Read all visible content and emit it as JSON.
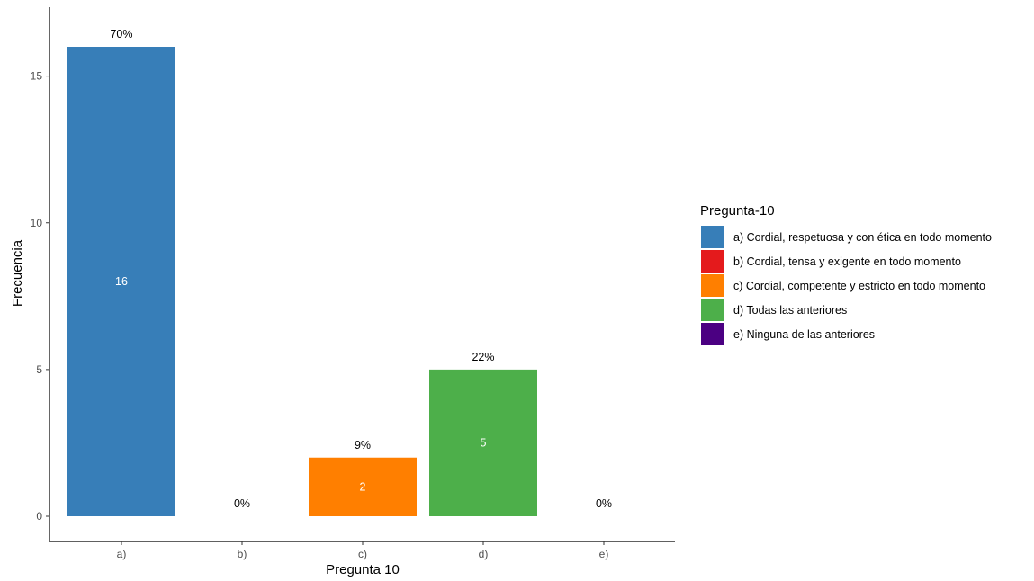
{
  "chart_data": {
    "type": "bar",
    "categories": [
      "a)",
      "b)",
      "c)",
      "d)",
      "e)"
    ],
    "values": [
      16,
      0,
      2,
      5,
      0
    ],
    "percent_labels": [
      "70%",
      "0%",
      "9%",
      "22%",
      "0%"
    ],
    "count_labels": [
      "16",
      "",
      "2",
      "5",
      ""
    ],
    "colors": [
      "#377EB8",
      "#E41A1C",
      "#FF7F00",
      "#4DAF4A",
      "#4B0082"
    ],
    "xlabel": "Pregunta 10",
    "ylabel": "Frecuencia",
    "ylim": [
      0,
      17.5
    ],
    "yticks": [
      0,
      5,
      10,
      15
    ],
    "grid": false,
    "legend": {
      "title": "Pregunta-10",
      "placement": "right",
      "entries": [
        "a) Cordial, respetuosa y con ética en todo momento",
        "b) Cordial, tensa y exigente en todo momento",
        "c) Cordial, competente y estricto en todo momento",
        "d) Todas las anteriores",
        "e) Ninguna de las anteriores"
      ]
    }
  }
}
